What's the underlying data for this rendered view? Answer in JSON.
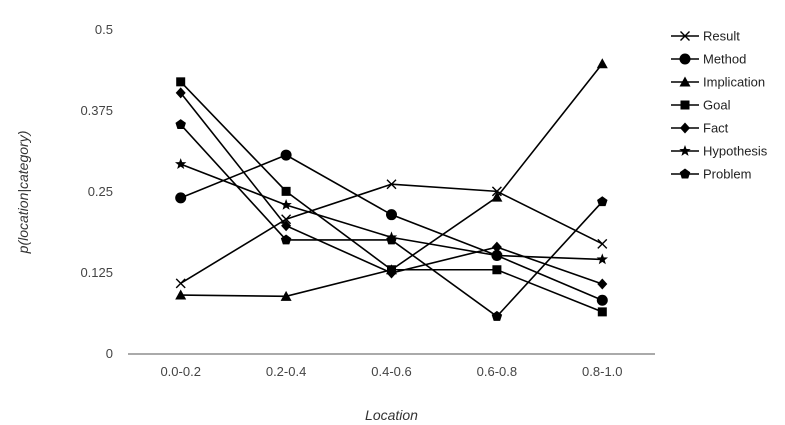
{
  "chart_data": {
    "type": "line",
    "xlabel": "Location",
    "ylabel": "p(location|category)",
    "ylim": [
      0,
      0.5
    ],
    "yticks": [
      "0",
      "0.125",
      "0.25",
      "0.375",
      "0.5"
    ],
    "ytick_values": [
      0,
      0.125,
      0.25,
      0.375,
      0.5
    ],
    "categories": [
      "0.0-0.2",
      "0.2-0.4",
      "0.4-0.6",
      "0.6-0.8",
      "0.8-1.0"
    ],
    "grid": false,
    "legend_position": "right",
    "series": [
      {
        "name": "Result",
        "marker": "x",
        "values": [
          0.109,
          0.208,
          0.262,
          0.251,
          0.17
        ]
      },
      {
        "name": "Method",
        "marker": "circle",
        "values": [
          0.241,
          0.307,
          0.215,
          0.152,
          0.083
        ]
      },
      {
        "name": "Implication",
        "marker": "triangle",
        "values": [
          0.091,
          0.089,
          0.13,
          0.242,
          0.448
        ]
      },
      {
        "name": "Goal",
        "marker": "square",
        "values": [
          0.42,
          0.251,
          0.13,
          0.13,
          0.065
        ]
      },
      {
        "name": "Fact",
        "marker": "diamond",
        "values": [
          0.403,
          0.198,
          0.125,
          0.165,
          0.108
        ]
      },
      {
        "name": "Hypothesis",
        "marker": "star",
        "values": [
          0.293,
          0.23,
          0.18,
          0.152,
          0.146
        ]
      },
      {
        "name": "Problem",
        "marker": "pentagon",
        "values": [
          0.354,
          0.176,
          0.176,
          0.058,
          0.235
        ]
      }
    ]
  }
}
